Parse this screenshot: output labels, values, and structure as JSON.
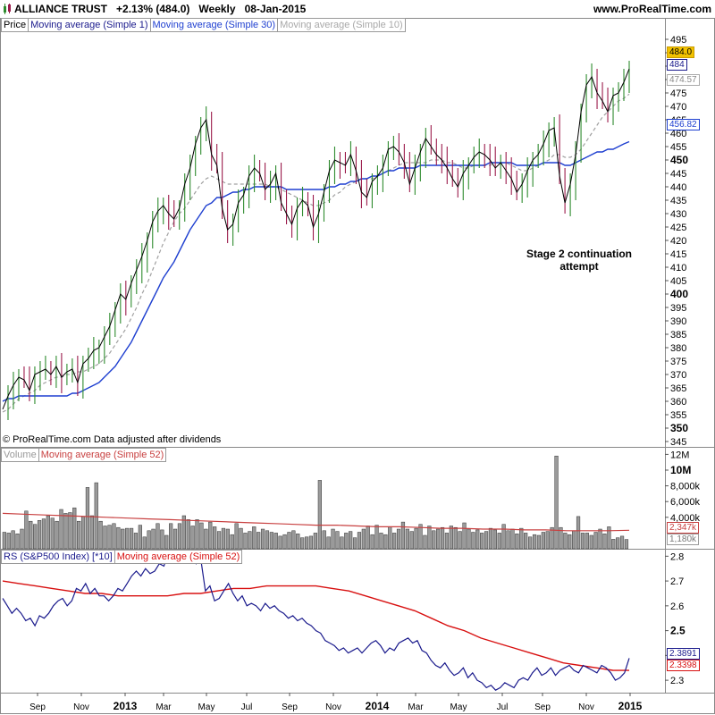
{
  "header": {
    "ticker": "ALLIANCE TRUST",
    "change": "+2.13% (484.0)",
    "period": "Weekly",
    "date": "08-Jan-2015",
    "site": "www.ProRealTime.com"
  },
  "legends": {
    "price": [
      "Price",
      "Moving average (Simple 1)",
      "Moving average (Simple 30)",
      "Moving average (Simple 10)"
    ],
    "volume": [
      "Volume",
      "Moving average (Simple 52)"
    ],
    "rs": [
      "RS (S&P500 Index) [*10]",
      "Moving average (Simple 52)"
    ]
  },
  "notes": {
    "copyright": "© ProRealTime.com  Data adjusted after dividends",
    "annotation": "Stage 2 continuation attempt"
  },
  "tags": {
    "price_last": "484.0",
    "price_ma1": "484",
    "price_ma10": "474.57",
    "price_ma30": "456.82",
    "vol_ma": "2,347k",
    "vol_last": "1,180k",
    "rs_last": "2.3891",
    "rs_ma": "2.3398"
  },
  "colors": {
    "up_bar": "#2e8b2e",
    "down_bar": "#9b1b4b",
    "ma1": "#000000",
    "ma30": "#1e3fd0",
    "ma10": "#a0a0a0",
    "rs_line": "#1a1a8c",
    "rs_ma": "#d81010",
    "vol_bar": "#9a9a9a",
    "vol_ma": "#c84040",
    "last_tag": "#f2c200"
  },
  "chart_data": [
    {
      "type": "line",
      "panel": "price",
      "title": "ALLIANCE TRUST",
      "x_ticks": [
        "Sep",
        "Nov",
        "2013",
        "Mar",
        "May",
        "Jul",
        "Sep",
        "Nov",
        "2014",
        "Mar",
        "May",
        "Jul",
        "Sep",
        "Nov",
        "2015"
      ],
      "y_ticks": [
        345,
        350,
        355,
        360,
        365,
        370,
        375,
        380,
        385,
        390,
        395,
        400,
        405,
        410,
        415,
        420,
        425,
        430,
        435,
        440,
        445,
        450,
        455,
        460,
        465,
        470,
        475,
        480,
        485,
        490,
        495
      ],
      "ylim": [
        343,
        498
      ],
      "series": [
        {
          "name": "Moving average (Simple 1)",
          "values": [
            357,
            362,
            366,
            369,
            368,
            364,
            370,
            371,
            372,
            370,
            373,
            369,
            371,
            372,
            367,
            374,
            376,
            379,
            380,
            384,
            388,
            394,
            400,
            398,
            404,
            409,
            414,
            420,
            427,
            431,
            433,
            430,
            428,
            432,
            441,
            447,
            456,
            462,
            465,
            452,
            448,
            432,
            424,
            426,
            434,
            437,
            444,
            447,
            445,
            439,
            441,
            445,
            434,
            430,
            426,
            432,
            435,
            433,
            425,
            430,
            438,
            446,
            450,
            449,
            448,
            452,
            446,
            438,
            436,
            442,
            444,
            447,
            454,
            455,
            453,
            449,
            441,
            447,
            453,
            458,
            455,
            452,
            450,
            447,
            443,
            440,
            445,
            448,
            451,
            453,
            452,
            450,
            447,
            449,
            446,
            443,
            438,
            441,
            446,
            450,
            452,
            456,
            461,
            462,
            444,
            434,
            441,
            452,
            468,
            478,
            481,
            475,
            472,
            468,
            474,
            475,
            479,
            484
          ]
        },
        {
          "name": "Moving average (Simple 30)",
          "values": [
            360,
            361,
            361,
            362,
            362,
            362,
            362,
            362,
            362,
            362,
            362,
            362,
            362,
            363,
            363,
            364,
            365,
            366,
            367,
            369,
            371,
            373,
            376,
            379,
            382,
            386,
            390,
            394,
            398,
            402,
            406,
            409,
            412,
            416,
            420,
            424,
            427,
            430,
            433,
            434,
            436,
            436,
            437,
            438,
            438,
            439,
            439,
            440,
            440,
            440,
            440,
            440,
            440,
            439,
            439,
            439,
            439,
            439,
            439,
            439,
            439,
            440,
            440,
            441,
            441,
            442,
            442,
            443,
            443,
            444,
            444,
            445,
            446,
            446,
            447,
            447,
            447,
            447,
            448,
            448,
            448,
            448,
            448,
            448,
            448,
            448,
            448,
            448,
            448,
            448,
            448,
            449,
            449,
            449,
            449,
            449,
            448,
            448,
            448,
            448,
            448,
            449,
            449,
            449,
            449,
            448,
            448,
            449,
            450,
            451,
            452,
            453,
            453,
            454,
            454,
            455,
            456,
            456.82
          ]
        },
        {
          "name": "Moving average (Simple 10)",
          "values": [
            356,
            357,
            359,
            361,
            362,
            363,
            364,
            366,
            367,
            368,
            369,
            369,
            370,
            370,
            371,
            371,
            372,
            373,
            374,
            376,
            378,
            381,
            384,
            387,
            391,
            395,
            400,
            404,
            409,
            414,
            419,
            423,
            427,
            430,
            432,
            435,
            438,
            441,
            443,
            444,
            443,
            442,
            441,
            441,
            441,
            441,
            441,
            441,
            441,
            441,
            440,
            440,
            439,
            438,
            437,
            436,
            435,
            434,
            433,
            433,
            434,
            435,
            437,
            438,
            440,
            441,
            442,
            443,
            443,
            443,
            444,
            445,
            446,
            447,
            448,
            449,
            449,
            449,
            449,
            449,
            450,
            450,
            450,
            449,
            449,
            448,
            447,
            447,
            448,
            448,
            448,
            448,
            449,
            449,
            449,
            448,
            447,
            446,
            446,
            447,
            448,
            449,
            450,
            452,
            452,
            451,
            451,
            452,
            454,
            457,
            460,
            463,
            466,
            468,
            470,
            472,
            473,
            474.57
          ]
        }
      ]
    },
    {
      "type": "bar",
      "panel": "volume",
      "y_ticks": [
        "1,180k",
        "2,347k",
        "4,000k",
        "6,000k",
        "8,000k",
        "10M",
        "12M"
      ],
      "ylim": [
        0,
        12000
      ],
      "series": [
        {
          "name": "Volume",
          "values": [
            2100,
            2000,
            2300,
            1900,
            2500,
            4800,
            3500,
            3100,
            3600,
            3800,
            4200,
            3900,
            3500,
            5000,
            4500,
            4600,
            5200,
            3500,
            4100,
            7800,
            4200,
            8400,
            3500,
            2900,
            3000,
            3200,
            2700,
            2500,
            2600,
            2600,
            2000,
            3000,
            1500,
            2300,
            2500,
            3200,
            2400,
            1700,
            3200,
            2500,
            3200,
            4200,
            3700,
            2900,
            3700,
            3300,
            2500,
            3400,
            2800,
            2200,
            2600,
            2500,
            1800,
            3200,
            2600,
            2000,
            2200,
            2800,
            2100,
            2500,
            2300,
            2100,
            2000,
            1600,
            1800,
            2100,
            2300,
            1900,
            1400,
            1500,
            1600,
            2000,
            8700,
            2300,
            1500,
            2500,
            2200,
            1500,
            2000,
            2200,
            1400,
            2100,
            2500,
            2900,
            1800,
            3000,
            2000,
            1800,
            2800,
            2000,
            2500,
            3400,
            2500,
            2200,
            2600,
            3100,
            1700,
            2900,
            2300,
            2500,
            2700,
            2000,
            2900,
            2700,
            2200,
            3300,
            2500,
            2100,
            2400,
            2000,
            2200,
            2600,
            2400,
            2000,
            3100,
            2300,
            2500,
            1900,
            2600,
            2000,
            1500,
            1800,
            1700,
            2100,
            2200,
            2700,
            11800,
            2700,
            2000,
            1800,
            2300,
            4100,
            2000,
            2000,
            1700,
            2100,
            2500,
            1900,
            2800,
            1200,
            1400,
            1600,
            1180
          ]
        },
        {
          "name": "Moving average (Simple 52)",
          "values": [
            4500,
            4400,
            4300,
            4200,
            4100,
            4000,
            3900,
            3800,
            3700,
            3600,
            3500,
            3400,
            3300,
            3200,
            3100,
            3000,
            3000,
            2900,
            2800,
            2800,
            2700,
            2600,
            2600,
            2500,
            2500,
            2400,
            2400,
            2300,
            2300,
            2300,
            2347
          ]
        }
      ]
    },
    {
      "type": "line",
      "panel": "rs",
      "y_ticks": [
        2.3,
        2.4,
        2.5,
        2.6,
        2.7,
        2.8
      ],
      "ylim": [
        2.25,
        2.83
      ],
      "series": [
        {
          "name": "RS (S&P500 Index) [*10]",
          "values": [
            2.63,
            2.6,
            2.57,
            2.59,
            2.57,
            2.54,
            2.55,
            2.52,
            2.56,
            2.55,
            2.57,
            2.6,
            2.62,
            2.63,
            2.6,
            2.62,
            2.67,
            2.66,
            2.69,
            2.65,
            2.67,
            2.64,
            2.64,
            2.62,
            2.64,
            2.67,
            2.66,
            2.69,
            2.72,
            2.74,
            2.72,
            2.75,
            2.73,
            2.74,
            2.77,
            2.76,
            2.82,
            2.8,
            2.81,
            2.79,
            2.82,
            2.8,
            2.77,
            2.79,
            2.66,
            2.68,
            2.62,
            2.63,
            2.66,
            2.69,
            2.65,
            2.62,
            2.64,
            2.6,
            2.61,
            2.6,
            2.58,
            2.61,
            2.59,
            2.6,
            2.58,
            2.57,
            2.55,
            2.56,
            2.54,
            2.55,
            2.53,
            2.52,
            2.5,
            2.49,
            2.46,
            2.45,
            2.44,
            2.42,
            2.43,
            2.41,
            2.42,
            2.43,
            2.41,
            2.43,
            2.45,
            2.46,
            2.44,
            2.41,
            2.43,
            2.42,
            2.45,
            2.46,
            2.47,
            2.45,
            2.46,
            2.42,
            2.41,
            2.38,
            2.36,
            2.35,
            2.37,
            2.34,
            2.32,
            2.33,
            2.35,
            2.31,
            2.33,
            2.3,
            2.29,
            2.27,
            2.28,
            2.26,
            2.27,
            2.29,
            2.28,
            2.27,
            2.3,
            2.31,
            2.3,
            2.33,
            2.35,
            2.32,
            2.33,
            2.35,
            2.32,
            2.34,
            2.35,
            2.36,
            2.34,
            2.33,
            2.36,
            2.35,
            2.34,
            2.33,
            2.36,
            2.35,
            2.33,
            2.3,
            2.31,
            2.33,
            2.3891
          ]
        },
        {
          "name": "Moving average (Simple 52)",
          "values": [
            2.7,
            2.69,
            2.68,
            2.67,
            2.66,
            2.65,
            2.65,
            2.64,
            2.64,
            2.64,
            2.64,
            2.65,
            2.65,
            2.66,
            2.67,
            2.67,
            2.68,
            2.68,
            2.68,
            2.68,
            2.67,
            2.66,
            2.64,
            2.62,
            2.6,
            2.58,
            2.55,
            2.52,
            2.5,
            2.47,
            2.45,
            2.43,
            2.41,
            2.39,
            2.37,
            2.36,
            2.35,
            2.34,
            2.3398
          ]
        }
      ]
    }
  ]
}
